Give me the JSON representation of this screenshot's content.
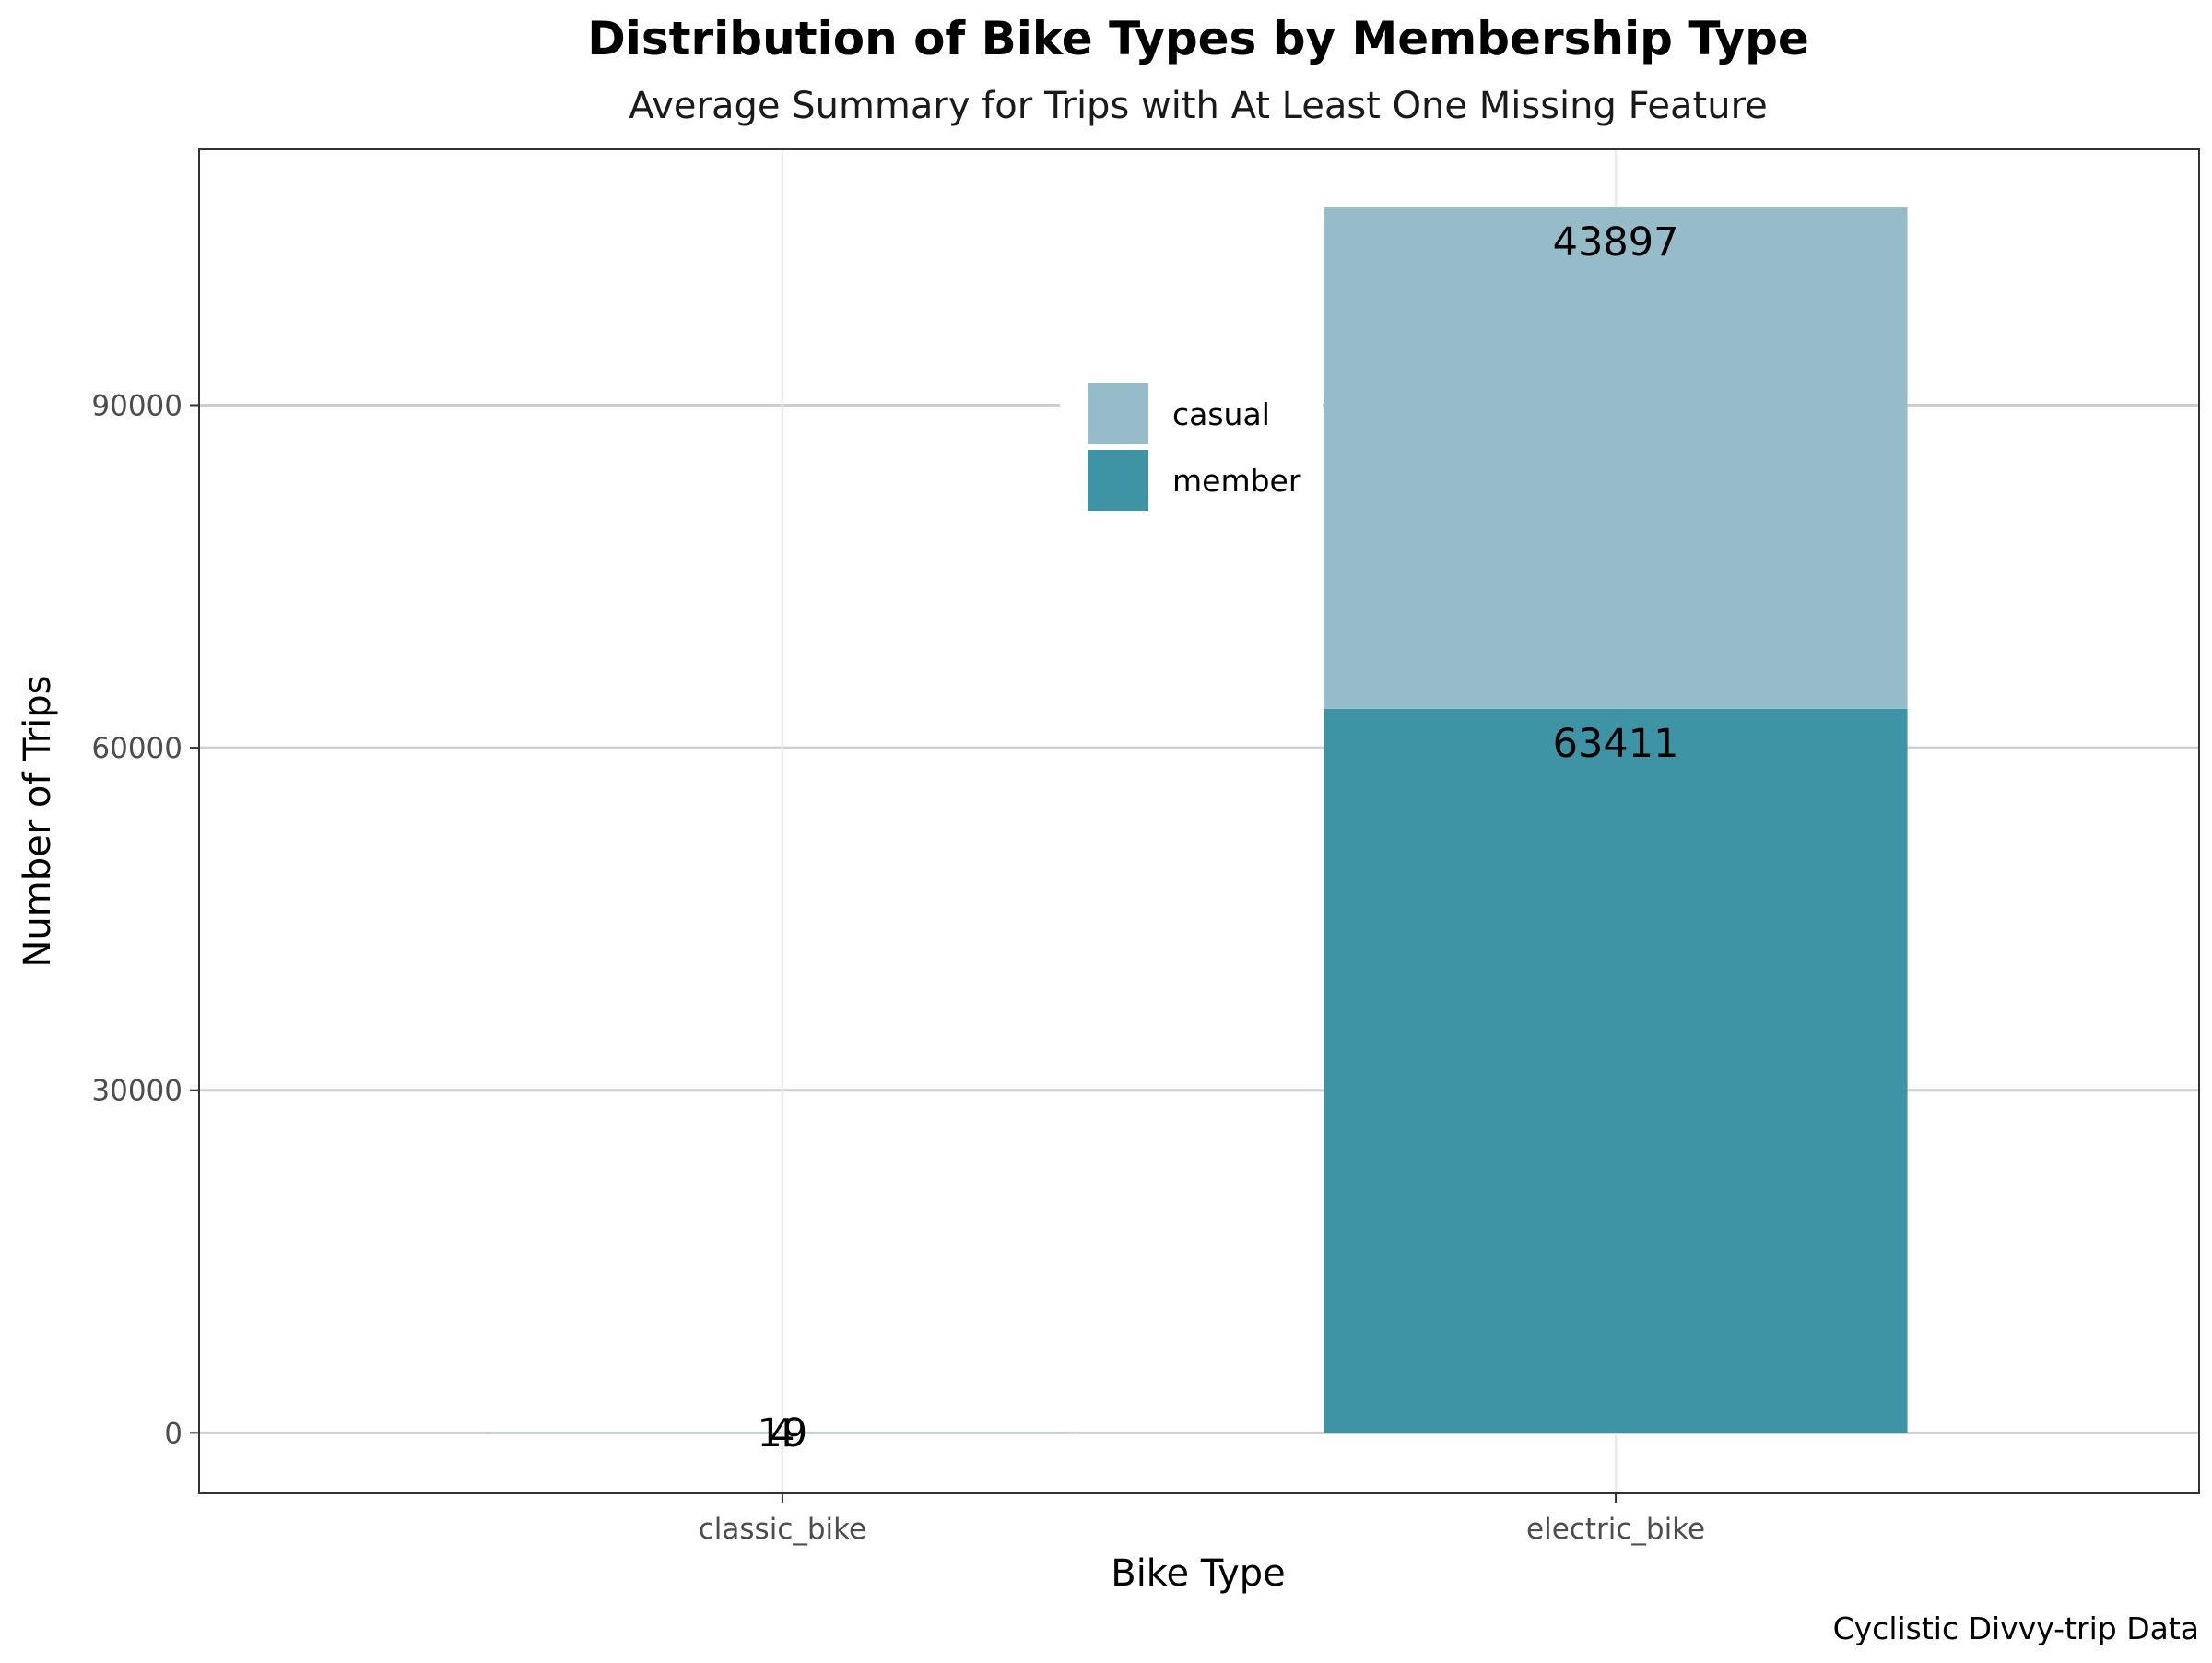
{
  "chart_data": {
    "type": "bar",
    "stacked": true,
    "title": "Distribution of Bike Types by Membership Type",
    "subtitle": "Average Summary for Trips with At Least One Missing Feature",
    "xlabel": "Bike Type",
    "ylabel": "Number of Trips",
    "caption": "Cyclistic Divvy-trip Data",
    "categories": [
      "classic_bike",
      "electric_bike"
    ],
    "series": [
      {
        "name": "member",
        "values": [
          4,
          63411
        ],
        "labels": [
          "4",
          "63411"
        ],
        "color": "#3e93a4"
      },
      {
        "name": "casual",
        "values": [
          19,
          43897
        ],
        "labels": [
          "19",
          "43897"
        ],
        "color": "#95bcc8"
      }
    ],
    "ylim": [
      -5300,
      112400
    ],
    "yticks": [
      0,
      30000,
      60000,
      90000
    ],
    "ytick_labels": [
      "0",
      "30000",
      "60000",
      "90000"
    ],
    "grid": true,
    "legend": {
      "placement": "inside-top-center",
      "order": [
        "casual",
        "member"
      ]
    }
  }
}
